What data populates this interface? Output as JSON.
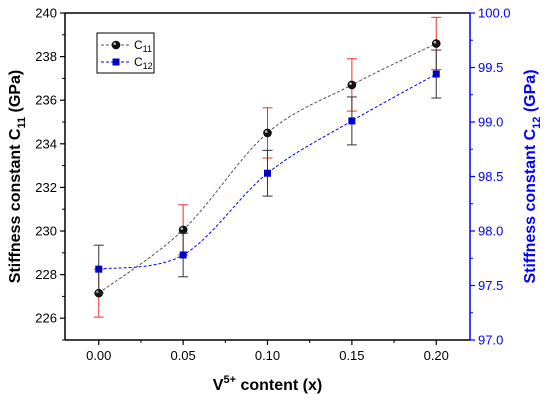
{
  "chart_data": {
    "type": "line",
    "x": [
      0.0,
      0.05,
      0.1,
      0.15,
      0.2
    ],
    "x_tick_labels": [
      "0.00",
      "0.05",
      "0.10",
      "0.15",
      "0.20"
    ],
    "xlim": [
      -0.02,
      0.22
    ],
    "xlabel": {
      "prefix": "V",
      "sup": "5+",
      "suffix": " content (x)"
    },
    "y_left": {
      "label": {
        "prefix": "Stiffness constant C",
        "sub": "11",
        "suffix": " (GPa)"
      },
      "lim": [
        225,
        240
      ],
      "ticks": [
        226,
        228,
        230,
        232,
        234,
        236,
        238,
        240
      ],
      "color": "#000000"
    },
    "y_right": {
      "label": {
        "prefix": "Stiffness constant C",
        "sub": "12",
        "suffix": " (GPa)"
      },
      "lim": [
        97.0,
        100.0
      ],
      "ticks": [
        "97.0",
        "97.5",
        "98.0",
        "98.5",
        "99.0",
        "99.5",
        "100.0"
      ],
      "color": "#0000ff"
    },
    "series": [
      {
        "name": {
          "prefix": "C",
          "sub": "11"
        },
        "axis": "left",
        "values": [
          227.15,
          230.05,
          234.5,
          236.7,
          238.6
        ],
        "errors": [
          1.1,
          1.15,
          1.15,
          1.2,
          1.2
        ],
        "marker": "circle",
        "line_color": "#555555",
        "error_color": "#e8332a",
        "marker_color": "#111111"
      },
      {
        "name": {
          "prefix": "C",
          "sub": "12"
        },
        "axis": "right",
        "values": [
          97.65,
          97.78,
          98.53,
          99.01,
          99.44
        ],
        "errors": [
          0.22,
          0.2,
          0.21,
          0.22,
          0.22
        ],
        "marker": "square",
        "line_color": "#0000ff",
        "error_color": "#333333",
        "marker_color": "#0000cc"
      }
    ],
    "legend_position": "top-left",
    "grid": false
  }
}
